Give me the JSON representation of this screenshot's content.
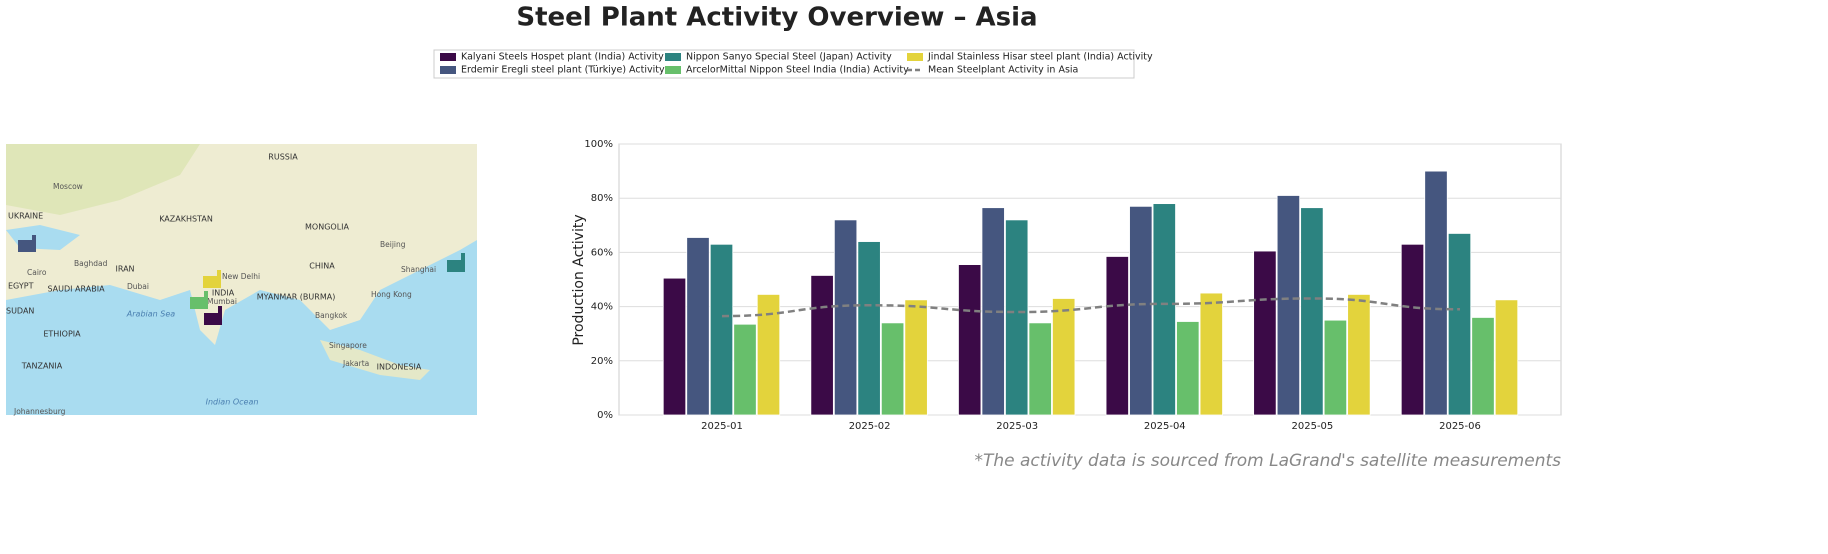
{
  "chart_data": {
    "type": "bar",
    "title": "Steel Plant Activity Overview – Asia",
    "ylabel": "Production Activity",
    "footnote": "*The activity data is sourced from LaGrand's satellite measurements",
    "categories": [
      "2025-01",
      "2025-02",
      "2025-03",
      "2025-04",
      "2025-05",
      "2025-06"
    ],
    "series": [
      {
        "name": "Kalyani Steels Hospet plant (India) Activity",
        "color": "#3b0a47",
        "values": [
          50.5,
          51.5,
          55.5,
          58.5,
          60.5,
          63
        ]
      },
      {
        "name": "Erdemir Eregli steel plant (Türkiye) Activity",
        "color": "#45567f",
        "values": [
          65.5,
          72,
          76.5,
          77,
          81,
          90
        ]
      },
      {
        "name": "Nippon Sanyo Special Steel (Japan) Activity",
        "color": "#2c8380",
        "values": [
          63,
          64,
          72,
          78,
          76.5,
          67
        ]
      },
      {
        "name": "ArcelorMittal Nippon Steel India (India) Activity",
        "color": "#67bf6b",
        "values": [
          33.5,
          34,
          34,
          34.5,
          35,
          36
        ]
      },
      {
        "name": "Jindal Stainless Hisar steel plant (India) Activity",
        "color": "#e3d33c",
        "values": [
          44.5,
          42.5,
          43,
          45,
          44.5,
          42.5
        ]
      },
      {
        "name": "Mean Steelplant Activity in Asia",
        "color": "#808080",
        "line": true,
        "values": [
          36.5,
          40.5,
          38,
          41,
          43,
          39
        ]
      }
    ],
    "ylim": [
      0,
      100
    ],
    "yticks": [
      {
        "value": 0,
        "label": "0%"
      },
      {
        "value": 20,
        "label": "20%"
      },
      {
        "value": 40,
        "label": "40%"
      },
      {
        "value": 60,
        "label": "60%"
      },
      {
        "value": 80,
        "label": "80%"
      },
      {
        "value": 100,
        "label": "100%"
      }
    ],
    "grid": true
  },
  "map": {
    "labels": [
      "RUSSIA",
      "Moscow",
      "UKRAINE",
      "KAZAKHSTAN",
      "MONGOLIA",
      "Beijing",
      "Baghdad",
      "IRAN",
      "CHINA",
      "Shanghai",
      "Cairo",
      "EGYPT",
      "SAUDI ARABIA",
      "Dubai",
      "INDIA",
      "New Delhi",
      "MYANMAR (BURMA)",
      "Hong Kong",
      "Mumbai",
      "Arabian Sea",
      "Bangkok",
      "SUDAN",
      "ETHIOPIA",
      "Singapore",
      "Jakarta",
      "INDONESIA",
      "TANZANIA",
      "Indian Ocean",
      "Johannesburg"
    ]
  }
}
